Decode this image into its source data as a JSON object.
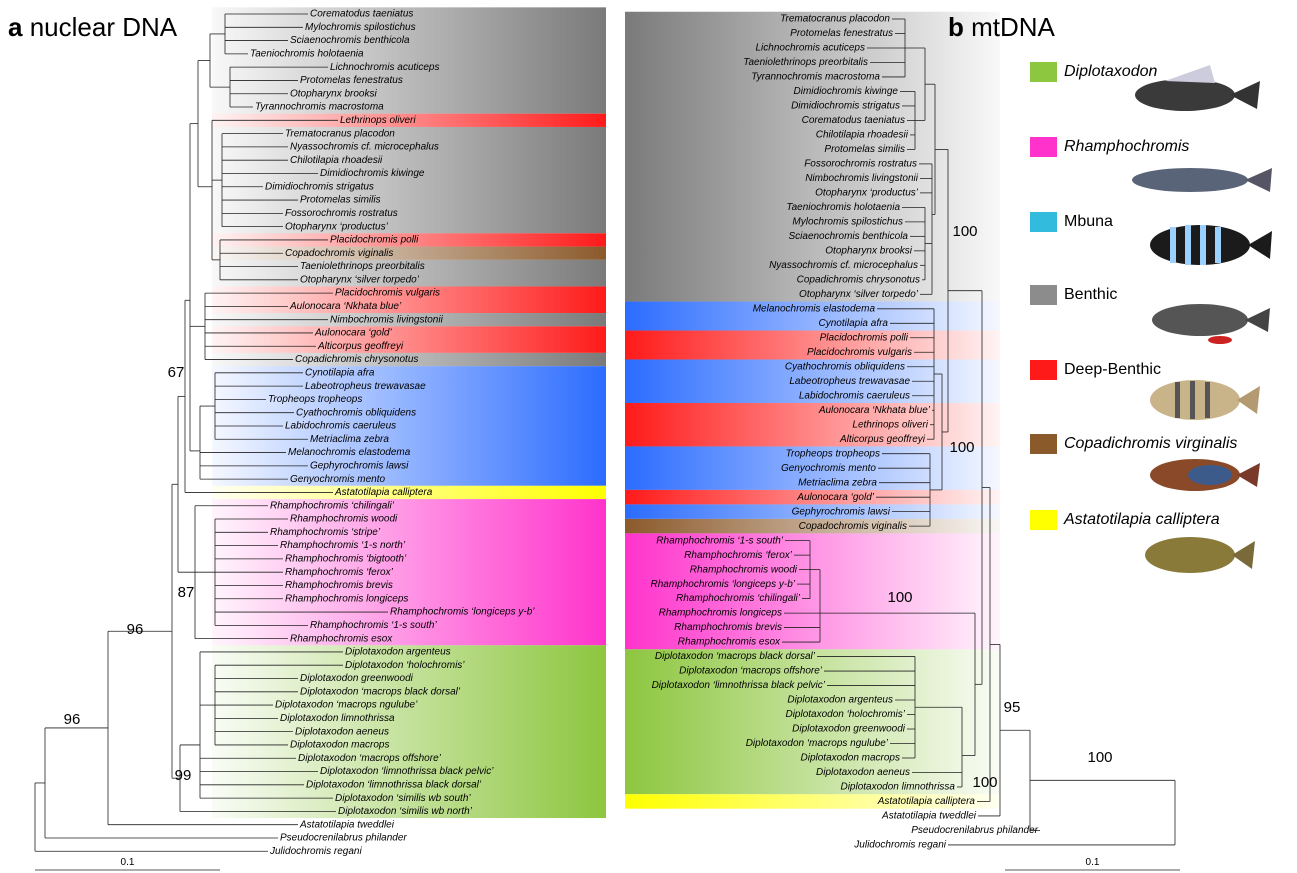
{
  "panel_a": {
    "label": "a",
    "title": "nuclear DNA",
    "taxa": [
      "Corematodus taeniatus",
      "Mylochromis spilostichus",
      "Sciaenochromis benthicola",
      "Taeniochromis holotaenia",
      "Lichnochromis acuticeps",
      "Protomelas fenestratus",
      "Otopharynx brooksi",
      "Tyrannochromis macrostoma",
      "Lethrinops oliveri",
      "Trematocranus placodon",
      "Nyassochromis cf. microcephalus",
      "Chilotilapia rhoadesii",
      "Dimidiochromis kiwinge",
      "Dimidiochromis strigatus",
      "Protomelas similis",
      "Fossorochromis rostratus",
      "Otopharynx ‘productus’",
      "Placidochromis polli",
      "Copadochromis viginalis",
      "Taeniolethrinops preorbitalis",
      "Otopharynx ‘silver torpedo’",
      "Placidochromis vulgaris",
      "Aulonocara ‘Nkhata blue’",
      "Nimbochromis livingstonii",
      "Aulonocara ‘gold’",
      "Alticorpus geoffreyi",
      "Copadichromis chrysonotus",
      "Cynotilapia afra",
      "Labeotropheus trewavasae",
      "Tropheops tropheops",
      "Cyathochromis obliquidens",
      "Labidochromis caeruleus",
      "Metriaclima zebra",
      "Melanochromis elastodema",
      "Gephyrochromis lawsi",
      "Genyochromis mento",
      "Astatotilapia calliptera",
      "Rhamphochromis ‘chilingali’",
      "Rhamphochromis woodi",
      "Rhamphochromis ‘stripe’",
      "Rhamphochromis ‘1-s north’",
      "Rhamphochromis ‘bigtooth’",
      "Rhamphochromis ‘ferox’",
      "Rhamphochromis brevis",
      "Rhamphochromis longiceps",
      "Rhamphochromis ‘longiceps y-b’",
      "Rhamphochromis ‘1-s south’",
      "Rhamphochromis esox",
      "Diplotaxodon argenteus",
      "Diplotaxodon ‘holochromis’",
      "Diplotaxodon greenwoodi",
      "Diplotaxodon ‘macrops black dorsal’",
      "Diplotaxodon ‘macrops ngulube’",
      "Diplotaxodon limnothrissa",
      "Diplotaxodon aeneus",
      "Diplotaxodon macrops",
      "Diplotaxodon ‘macrops offshore’",
      "Diplotaxodon ‘limnothrissa black pelvic’",
      "Diplotaxodon ‘limnothrissa black dorsal’",
      "Diplotaxodon ‘similis wb south’",
      "Diplotaxodon ‘similis wb north’",
      "Astatotilapia tweddlei",
      "Pseudocrenilabrus philander",
      "Julidochromis regani"
    ],
    "support": [
      "96",
      "67",
      "87",
      "99",
      "96"
    ],
    "scale": "0.1"
  },
  "panel_b": {
    "label": "b",
    "title": "mtDNA",
    "taxa": [
      "Trematocranus placodon",
      "Protomelas fenestratus",
      "Lichnochromis acuticeps",
      "Taeniolethrinops preorbitalis",
      "Tyrannochromis macrostoma",
      "Dimidiochromis kiwinge",
      "Dimidiochromis strigatus",
      "Corematodus taeniatus",
      "Chilotilapia rhoadesii",
      "Protomelas similis",
      "Fossorochromis rostratus",
      "Nimbochromis livingstonii",
      "Otopharynx ‘productus’",
      "Taeniochromis holotaenia",
      "Mylochromis spilostichus",
      "Sciaenochromis benthicola",
      "Otopharynx brooksi",
      "Nyassochromis cf. microcephalus",
      "Copadichromis chrysonotus",
      "Otopharynx ‘silver torpedo’",
      "Melanochromis elastodema",
      "Cynotilapia afra",
      "Placidochromis polli",
      "Placidochromis vulgaris",
      "Cyathochromis obliquidens",
      "Labeotropheus trewavasae",
      "Labidochromis caeruleus",
      "Aulonocara ‘Nkhata blue’",
      "Lethrinops oliveri",
      "Alticorpus geoffreyi",
      "Tropheops tropheops",
      "Genyochromis mento",
      "Metriaclima zebra",
      "Aulonocara ‘gold’",
      "Gephyrochromis lawsi",
      "Copadochromis viginalis",
      "Rhamphochromis ‘1-s south’",
      "Rhamphochromis ‘ferox’",
      "Rhamphochromis woodi",
      "Rhamphochromis ‘longiceps y-b’",
      "Rhamphochromis ‘chilingali’",
      "Rhamphochromis longiceps",
      "Rhamphochromis brevis",
      "Rhamphochromis esox",
      "Diplotaxodon ‘macrops black dorsal’",
      "Diplotaxodon ‘macrops offshore’",
      "Diplotaxodon ‘limnothrissa black pelvic’",
      "Diplotaxodon argenteus",
      "Diplotaxodon ‘holochromis’",
      "Diplotaxodon greenwoodi",
      "Diplotaxodon ‘macrops ngulube’",
      "Diplotaxodon macrops",
      "Diplotaxodon aeneus",
      "Diplotaxodon limnothrissa",
      "Astatotilapia calliptera",
      "Astatotilapia tweddlei",
      "Pseudocrenilabrus philander",
      "Julidochromis regani"
    ],
    "support": [
      "100",
      "100",
      "100",
      "100",
      "95",
      "100"
    ],
    "scale": "0.1"
  },
  "legend": [
    "Diplotaxodon",
    "Rhamphochromis",
    "Mbuna",
    "Benthic",
    "Deep-Benthic",
    "Copadichromis virginalis",
    "Astatotilapia calliptera"
  ]
}
